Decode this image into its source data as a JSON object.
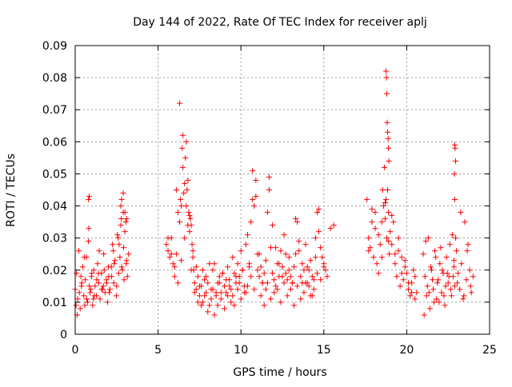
{
  "chart_data": {
    "type": "scatter",
    "title": "Day 144 of 2022, Rate Of TEC Index for receiver aplj",
    "xlabel": "GPS time / hours",
    "ylabel": "ROTI / TECUs",
    "xlim": [
      0,
      25
    ],
    "ylim": [
      0,
      0.09
    ],
    "x_ticks": [
      0,
      5,
      10,
      15,
      20,
      25
    ],
    "x_tick_labels": [
      "0",
      "5",
      "10",
      "15",
      "20",
      "25"
    ],
    "y_ticks": [
      0,
      0.01,
      0.02,
      0.03,
      0.04,
      0.05,
      0.06,
      0.07,
      0.08,
      0.09
    ],
    "y_tick_labels": [
      "0",
      "0.01",
      "0.02",
      "0.03",
      "0.04",
      "0.05",
      "0.06",
      "0.07",
      "0.08",
      "0.09"
    ],
    "grid": true,
    "marker": "+",
    "color": "#ff0000",
    "series": [
      {
        "x": [
          0.0,
          0.08,
          0.15,
          0.22,
          0.3,
          0.38,
          0.45,
          0.52,
          0.6,
          0.68,
          0.75,
          0.82,
          0.9,
          0.98,
          1.05,
          1.12,
          1.2,
          1.28,
          1.35,
          1.42,
          1.5,
          1.58,
          1.65,
          1.72,
          1.8,
          1.88,
          1.95,
          2.02,
          2.1,
          2.18,
          2.25,
          2.32,
          2.4,
          2.48,
          2.55,
          2.62,
          2.7,
          2.78,
          2.85,
          2.92,
          3.0,
          3.08,
          3.15,
          3.22,
          0.05,
          0.25,
          0.4,
          0.55,
          0.7,
          0.85,
          1.0,
          1.15,
          1.3,
          1.45,
          1.6,
          1.75,
          1.9,
          2.05,
          2.2,
          2.35,
          2.5,
          2.65,
          2.8,
          2.95,
          3.1,
          0.12,
          0.35,
          0.58,
          0.8,
          0.95,
          1.1,
          1.4,
          1.7,
          2.0,
          2.3,
          2.6,
          2.75,
          2.9,
          3.05,
          0.8,
          0.85,
          2.75,
          2.8,
          2.9,
          3.0,
          3.1
        ],
        "y": [
          0.014,
          0.019,
          0.011,
          0.026,
          0.008,
          0.015,
          0.021,
          0.012,
          0.017,
          0.024,
          0.01,
          0.033,
          0.013,
          0.018,
          0.009,
          0.02,
          0.015,
          0.012,
          0.022,
          0.016,
          0.011,
          0.019,
          0.014,
          0.025,
          0.013,
          0.017,
          0.01,
          0.018,
          0.014,
          0.021,
          0.028,
          0.016,
          0.023,
          0.012,
          0.031,
          0.019,
          0.024,
          0.036,
          0.02,
          0.027,
          0.032,
          0.022,
          0.018,
          0.025,
          0.009,
          0.013,
          0.016,
          0.024,
          0.011,
          0.015,
          0.019,
          0.012,
          0.017,
          0.026,
          0.014,
          0.02,
          0.016,
          0.013,
          0.018,
          0.022,
          0.015,
          0.028,
          0.021,
          0.017,
          0.023,
          0.006,
          0.018,
          0.009,
          0.029,
          0.014,
          0.011,
          0.019,
          0.015,
          0.021,
          0.026,
          0.03,
          0.034,
          0.038,
          0.035,
          0.042,
          0.043,
          0.04,
          0.042,
          0.044,
          0.038,
          0.036
        ]
      },
      {
        "x": [
          5.5,
          5.6,
          5.7,
          5.8,
          5.9,
          6.0,
          6.1,
          6.2,
          6.3,
          6.35,
          6.4,
          6.45,
          6.5,
          6.55,
          6.6,
          6.65,
          6.7,
          6.75,
          6.8,
          6.85,
          6.9,
          6.95,
          7.0,
          7.05,
          7.1,
          7.15,
          7.2,
          7.3,
          7.4,
          7.5,
          7.6,
          7.7,
          7.8,
          7.9,
          8.0,
          8.1,
          8.2,
          8.3,
          8.4,
          8.5,
          8.6,
          8.7,
          8.8,
          8.9,
          9.0,
          9.1,
          9.2,
          9.3,
          9.4,
          9.5,
          9.6,
          9.7,
          9.8,
          9.9,
          10.0,
          10.1,
          10.2,
          10.3,
          10.4,
          10.5,
          10.6,
          10.7,
          10.8,
          10.9,
          11.0,
          11.1,
          11.2,
          11.3,
          11.4,
          11.5,
          11.6,
          11.7,
          11.8,
          11.9,
          12.0,
          12.1,
          12.2,
          12.3,
          12.4,
          12.5,
          12.6,
          12.7,
          12.8,
          12.9,
          13.0,
          13.1,
          13.2,
          13.3,
          13.4,
          13.5,
          13.6,
          13.7,
          13.8,
          13.9,
          14.0,
          14.1,
          14.2,
          14.3,
          14.4,
          14.5,
          14.6,
          14.7,
          14.8,
          14.9,
          15.0,
          15.1,
          15.2
        ],
        "y": [
          0.028,
          0.026,
          0.024,
          0.03,
          0.022,
          0.018,
          0.025,
          0.038,
          0.035,
          0.042,
          0.04,
          0.058,
          0.052,
          0.044,
          0.047,
          0.055,
          0.06,
          0.045,
          0.048,
          0.038,
          0.032,
          0.036,
          0.034,
          0.028,
          0.024,
          0.02,
          0.016,
          0.014,
          0.018,
          0.012,
          0.015,
          0.01,
          0.017,
          0.013,
          0.016,
          0.009,
          0.014,
          0.02,
          0.022,
          0.012,
          0.016,
          0.018,
          0.011,
          0.019,
          0.015,
          0.013,
          0.021,
          0.017,
          0.014,
          0.024,
          0.019,
          0.016,
          0.022,
          0.018,
          0.026,
          0.02,
          0.015,
          0.028,
          0.031,
          0.022,
          0.035,
          0.042,
          0.04,
          0.048,
          0.025,
          0.018,
          0.021,
          0.016,
          0.019,
          0.023,
          0.038,
          0.045,
          0.027,
          0.019,
          0.017,
          0.015,
          0.022,
          0.018,
          0.026,
          0.021,
          0.031,
          0.019,
          0.017,
          0.024,
          0.018,
          0.016,
          0.021,
          0.025,
          0.035,
          0.029,
          0.018,
          0.016,
          0.02,
          0.028,
          0.021,
          0.015,
          0.023,
          0.012,
          0.017,
          0.03,
          0.038,
          0.032,
          0.027,
          0.024,
          0.022,
          0.02,
          0.018
        ]
      },
      {
        "x": [
          5.6,
          5.8,
          6.0,
          6.2,
          6.4,
          6.6,
          6.8,
          7.0,
          7.2,
          7.4,
          7.6,
          7.8,
          8.0,
          8.2,
          8.4,
          8.6,
          8.8,
          9.0,
          9.2,
          9.4,
          9.6,
          9.8,
          10.0,
          10.2,
          10.4,
          10.6,
          10.8,
          11.0,
          11.2,
          11.4,
          11.6,
          11.8,
          12.0,
          12.2,
          12.4,
          12.6,
          12.8,
          13.0,
          13.2,
          13.4,
          13.6,
          13.8,
          14.0,
          14.2,
          14.4,
          14.6,
          14.8,
          15.0,
          6.1,
          6.3,
          6.5,
          6.7,
          6.9,
          7.1,
          7.3,
          7.5,
          7.7,
          7.9,
          8.1,
          8.3,
          8.5,
          8.7,
          8.9,
          9.1,
          9.3,
          9.5,
          9.7,
          9.9,
          10.1,
          10.3,
          10.5,
          10.7,
          10.9,
          11.1,
          11.3,
          11.5,
          11.7,
          11.9,
          12.1,
          12.3,
          12.5,
          12.7,
          12.9,
          13.1,
          13.3,
          13.5,
          13.7,
          13.9,
          14.1,
          14.3,
          14.5,
          14.7
        ],
        "y": [
          0.03,
          0.025,
          0.021,
          0.016,
          0.023,
          0.03,
          0.034,
          0.02,
          0.013,
          0.01,
          0.009,
          0.012,
          0.007,
          0.011,
          0.006,
          0.009,
          0.013,
          0.008,
          0.012,
          0.01,
          0.009,
          0.014,
          0.011,
          0.013,
          0.015,
          0.018,
          0.014,
          0.02,
          0.012,
          0.009,
          0.016,
          0.011,
          0.013,
          0.014,
          0.01,
          0.016,
          0.012,
          0.014,
          0.009,
          0.015,
          0.011,
          0.013,
          0.016,
          0.012,
          0.014,
          0.019,
          0.017,
          0.021,
          0.045,
          0.072,
          0.062,
          0.04,
          0.037,
          0.026,
          0.021,
          0.015,
          0.02,
          0.018,
          0.022,
          0.014,
          0.013,
          0.016,
          0.019,
          0.017,
          0.015,
          0.012,
          0.018,
          0.016,
          0.02,
          0.013,
          0.021,
          0.051,
          0.043,
          0.025,
          0.016,
          0.014,
          0.049,
          0.034,
          0.027,
          0.022,
          0.018,
          0.025,
          0.02,
          0.016,
          0.036,
          0.026,
          0.022,
          0.016,
          0.02,
          0.018,
          0.024,
          0.039
        ]
      },
      {
        "x": [
          15.4,
          15.6,
          17.6,
          17.7,
          17.8,
          17.9,
          18.0,
          18.1,
          18.2,
          18.3,
          18.4,
          18.5,
          18.55,
          18.6,
          18.65,
          18.7,
          18.75,
          18.8,
          18.85,
          18.9,
          18.95,
          19.0,
          19.1,
          19.2,
          19.3,
          19.4,
          19.5,
          19.6,
          19.7,
          19.8,
          19.9,
          20.0,
          20.1,
          20.2,
          20.3,
          20.4,
          20.5,
          20.6,
          17.7,
          17.9,
          18.1,
          18.3,
          18.5,
          18.7,
          18.9,
          19.1,
          19.3,
          19.5,
          19.7,
          19.9,
          20.1,
          20.3,
          20.5,
          18.75,
          18.78,
          18.8,
          18.82,
          18.85,
          18.88,
          18.9,
          18.92
        ],
        "y": [
          0.033,
          0.034,
          0.042,
          0.03,
          0.027,
          0.035,
          0.024,
          0.038,
          0.022,
          0.031,
          0.028,
          0.035,
          0.045,
          0.04,
          0.052,
          0.036,
          0.042,
          0.03,
          0.045,
          0.038,
          0.025,
          0.032,
          0.028,
          0.035,
          0.022,
          0.018,
          0.026,
          0.015,
          0.024,
          0.017,
          0.021,
          0.019,
          0.014,
          0.012,
          0.016,
          0.02,
          0.011,
          0.013,
          0.026,
          0.039,
          0.033,
          0.019,
          0.024,
          0.041,
          0.029,
          0.037,
          0.025,
          0.03,
          0.019,
          0.023,
          0.016,
          0.013,
          0.018,
          0.082,
          0.08,
          0.075,
          0.066,
          0.063,
          0.061,
          0.058,
          0.054
        ]
      },
      {
        "x": [
          21.0,
          21.1,
          21.2,
          21.3,
          21.4,
          21.5,
          21.6,
          21.7,
          21.8,
          21.9,
          22.0,
          22.1,
          22.2,
          22.3,
          22.4,
          22.5,
          22.6,
          22.7,
          22.8,
          22.85,
          22.9,
          22.95,
          23.0,
          23.1,
          23.2,
          23.3,
          23.4,
          23.5,
          23.6,
          23.7,
          23.8,
          23.9,
          24.0,
          21.05,
          21.25,
          21.45,
          21.65,
          21.85,
          22.05,
          22.25,
          22.45,
          22.65,
          22.85,
          23.05,
          23.25,
          23.45,
          23.65,
          23.85,
          21.15,
          21.35,
          21.55,
          21.75,
          21.95,
          22.15,
          22.35,
          22.55,
          22.75,
          22.9,
          22.92,
          22.95,
          22.88,
          22.9
        ],
        "y": [
          0.025,
          0.018,
          0.012,
          0.03,
          0.008,
          0.02,
          0.014,
          0.026,
          0.011,
          0.017,
          0.022,
          0.013,
          0.019,
          0.009,
          0.024,
          0.016,
          0.028,
          0.012,
          0.018,
          0.021,
          0.015,
          0.03,
          0.026,
          0.019,
          0.014,
          0.022,
          0.011,
          0.035,
          0.017,
          0.028,
          0.02,
          0.013,
          0.018,
          0.006,
          0.015,
          0.021,
          0.01,
          0.016,
          0.027,
          0.012,
          0.019,
          0.014,
          0.023,
          0.016,
          0.038,
          0.012,
          0.026,
          0.015,
          0.029,
          0.013,
          0.017,
          0.024,
          0.01,
          0.02,
          0.015,
          0.018,
          0.031,
          0.059,
          0.058,
          0.054,
          0.05,
          0.042
        ]
      }
    ]
  }
}
